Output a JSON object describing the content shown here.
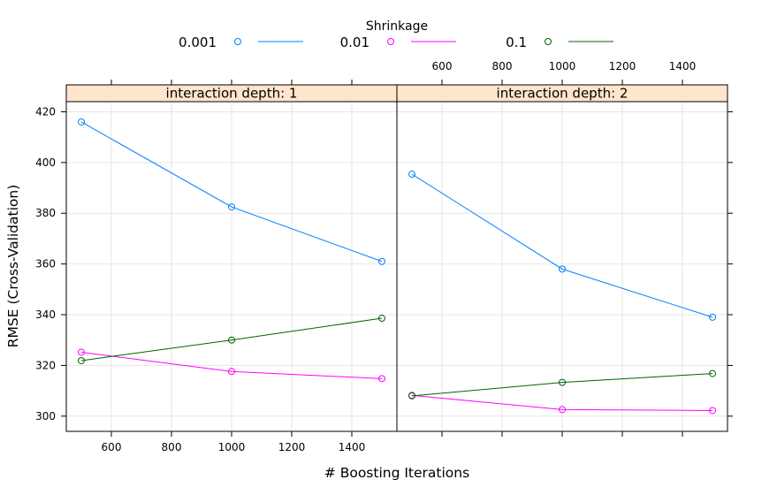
{
  "chart_data": {
    "type": "line",
    "legend_title": "Shrinkage",
    "legend_position": "top",
    "xlabel": "# Boosting Iterations",
    "ylabel": "RMSE (Cross-Validation)",
    "xlim": [
      450,
      1550
    ],
    "ylim": [
      294,
      424
    ],
    "x_ticks": [
      600,
      800,
      1000,
      1200,
      1400
    ],
    "y_ticks": [
      300,
      320,
      340,
      360,
      380,
      400,
      420
    ],
    "grid": true,
    "strip_color": "#ffe5cc",
    "panels": [
      {
        "strip_label": "interaction depth: 1",
        "series": [
          {
            "name": "0.001",
            "color": "#0080ff",
            "x": [
              500,
              1000,
              1500
            ],
            "y": [
              416,
              382.5,
              361
            ]
          },
          {
            "name": "0.01",
            "color": "#ff00ff",
            "x": [
              500,
              1000,
              1500
            ],
            "y": [
              325.2,
              317.6,
              314.8
            ]
          },
          {
            "name": "0.1",
            "color": "#006400",
            "x": [
              500,
              1000,
              1500
            ],
            "y": [
              321.9,
              330,
              338.6
            ]
          }
        ]
      },
      {
        "strip_label": "interaction depth: 2",
        "series": [
          {
            "name": "0.001",
            "color": "#0080ff",
            "x": [
              500,
              1000,
              1500
            ],
            "y": [
              395.4,
              358,
              339
            ]
          },
          {
            "name": "0.01",
            "color": "#ff00ff",
            "x": [
              500,
              1000,
              1500
            ],
            "y": [
              308.2,
              302.6,
              302.2
            ]
          },
          {
            "name": "0.1",
            "color": "#006400",
            "x": [
              500,
              1000,
              1500
            ],
            "y": [
              308,
              313.3,
              316.8
            ]
          }
        ]
      }
    ]
  }
}
